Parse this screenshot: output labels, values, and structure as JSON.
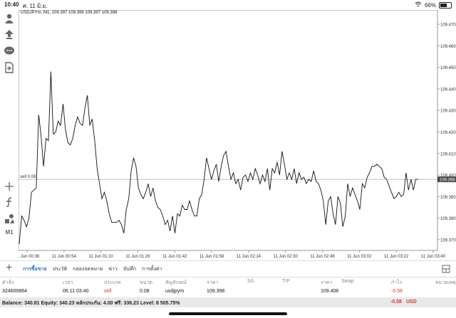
{
  "status": {
    "time": "10:40",
    "date": "ศ. 11 มิ.ย.",
    "battery": "66%",
    "battery_level": 0.66
  },
  "chart": {
    "symbol_line": "USDJPYm, M1, 109.397 109.399 109.397 109.398",
    "sell_label": "sell 0.08",
    "price_levels": [
      "109.470",
      "109.460",
      "109.450",
      "109.440",
      "109.430",
      "109.420",
      "109.410",
      "109.400",
      "109.390",
      "109.380",
      "109.370"
    ],
    "current_price": "109.398",
    "time_labels": [
      "11 Jun 00:38",
      "11 Jun 00:54",
      "11 Jun 01:10",
      "11 Jun 01:26",
      "11 Jun 01:42",
      "11 Jun 01:58",
      "11 Jun 02:14",
      "11 Jun 02:30",
      "11 Jun 02:46",
      "11 Jun 03:02",
      "11 Jun 03:22",
      "11 Jun 03:40"
    ],
    "timeframe": "M1",
    "price_series": [
      109.368,
      109.381,
      109.379,
      109.376,
      109.38,
      109.392,
      109.393,
      109.394,
      109.428,
      109.418,
      109.404,
      109.417,
      109.416,
      109.448,
      109.419,
      109.42,
      109.425,
      109.423,
      109.433,
      109.421,
      109.415,
      109.414,
      109.417,
      109.423,
      109.427,
      109.424,
      109.423,
      109.431,
      109.437,
      109.423,
      109.426,
      109.416,
      109.403,
      109.396,
      109.389,
      109.392,
      109.388,
      109.382,
      109.378,
      109.378,
      109.378,
      109.379,
      109.377,
      109.373,
      109.384,
      109.389,
      109.402,
      109.408,
      109.404,
      109.394,
      109.391,
      109.389,
      109.392,
      109.396,
      109.39,
      109.394,
      109.388,
      109.385,
      109.384,
      109.381,
      109.377,
      109.379,
      109.374,
      109.381,
      109.373,
      109.382,
      109.381,
      109.386,
      109.384,
      109.384,
      109.388,
      109.384,
      109.381,
      109.381,
      109.389,
      109.391,
      109.398,
      109.408,
      109.403,
      109.398,
      109.402,
      109.405,
      109.397,
      109.404,
      109.409,
      109.411,
      109.404,
      109.398,
      109.401,
      109.396,
      109.398,
      109.393,
      109.399,
      109.4,
      109.397,
      109.401,
      109.398,
      109.403,
      109.4,
      109.396,
      109.4,
      109.397,
      109.403,
      109.393,
      109.403,
      109.401,
      109.406,
      109.4,
      109.411,
      109.405,
      109.398,
      109.401,
      109.398,
      109.403,
      109.396,
      109.401,
      109.398,
      109.399,
      109.396,
      109.398,
      109.397,
      109.402,
      109.397,
      109.396,
      109.393,
      109.388,
      109.377,
      109.388,
      109.39,
      109.382,
      109.377,
      109.39,
      109.387,
      109.376,
      109.381,
      109.396,
      109.39,
      109.394,
      109.391,
      109.388,
      109.384,
      109.396,
      109.394,
      109.399,
      109.401,
      109.404,
      109.404,
      109.405,
      109.404,
      109.403,
      109.399,
      109.398,
      109.395,
      109.392,
      109.389,
      109.39,
      109.392,
      109.39,
      109.391,
      109.401,
      109.393,
      109.398,
      109.393,
      109.398,
      109.398
    ]
  },
  "leftbar": {
    "icons": [
      "person-icon",
      "pin-icon",
      "chat-icon",
      "file-icon",
      "crosshair-icon",
      "indicator-icon",
      "objects-icon"
    ],
    "timeframe": "M1"
  },
  "bottombar": {
    "tabs": [
      "การซื้อขาย",
      "ประวัติ",
      "กล่องจดหมาย",
      "ข่าว",
      "บันทึก",
      "การตั้งค่า"
    ],
    "active_tab": 0
  },
  "table": {
    "headers": [
      "คำสั่ง",
      "เวลา",
      "ประเภท",
      "ขนาด",
      "สัญลักษณ์",
      "ราคา",
      "S/L",
      "T/P",
      "ราคา",
      "Swap",
      "กำไร",
      "หมายเหตุ"
    ],
    "row": [
      "324600864",
      "06.11 03:40",
      "sell",
      "0.08",
      "usdjpym",
      "109.398",
      "",
      "",
      "109.406",
      "",
      "-0.58",
      ""
    ]
  },
  "balance": {
    "text": "Balance: 340.81  Equity: 340.23  หลักประกัน: 4.00  ฟรี: 336.23  Level: 8 505.75%",
    "profit": "-0.58",
    "currency": "USD"
  },
  "colors": {
    "accent": "#2a6fd8",
    "loss": "#dd3333",
    "price_box": "#4a4a4a"
  }
}
